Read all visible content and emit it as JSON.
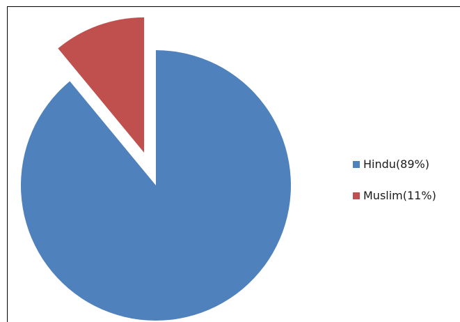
{
  "chart_data": {
    "type": "pie",
    "title": "",
    "slices": [
      {
        "label": "Hindu(89%)",
        "value": 89,
        "color": "#4f81bd"
      },
      {
        "label": "Muslim(11%)",
        "value": 11,
        "color": "#c0504d"
      }
    ],
    "exploded_slice": "Muslim(11%)",
    "legend_position": "right"
  }
}
